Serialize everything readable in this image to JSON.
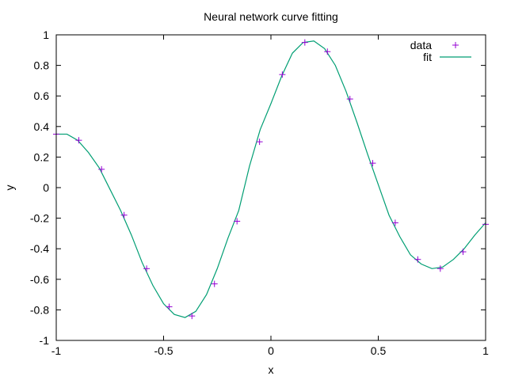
{
  "chart_data": {
    "type": "line",
    "title": "Neural network curve fitting",
    "xlabel": "x",
    "ylabel": "y",
    "xlim": [
      -1,
      1
    ],
    "ylim": [
      -1,
      1
    ],
    "xticks": [
      -1,
      -0.5,
      0,
      0.5,
      1
    ],
    "xtick_labels": [
      "-1",
      "-0.5",
      "0",
      "0.5",
      "1"
    ],
    "yticks": [
      -1,
      -0.8,
      -0.6,
      -0.4,
      -0.2,
      0,
      0.2,
      0.4,
      0.6,
      0.8,
      1
    ],
    "ytick_labels": [
      "-1",
      "-0.8",
      "-0.6",
      "-0.4",
      "-0.2",
      "0",
      "0.2",
      "0.4",
      "0.6",
      "0.8",
      "1"
    ],
    "grid": false,
    "legend_position": "top-right",
    "series": [
      {
        "name": "data",
        "kind": "points",
        "marker": "plus",
        "color": "#9400d3",
        "x": [
          -1.0,
          -0.895,
          -0.789,
          -0.684,
          -0.579,
          -0.474,
          -0.368,
          -0.263,
          -0.158,
          -0.053,
          0.053,
          0.158,
          0.263,
          0.368,
          0.474,
          0.579,
          0.684,
          0.789,
          0.895,
          1.0
        ],
        "y": [
          0.35,
          0.31,
          0.12,
          -0.18,
          -0.53,
          -0.78,
          -0.84,
          -0.63,
          -0.22,
          0.3,
          0.74,
          0.95,
          0.89,
          0.58,
          0.16,
          -0.23,
          -0.47,
          -0.53,
          -0.42,
          -0.24
        ]
      },
      {
        "name": "fit",
        "kind": "line",
        "color": "#009e73",
        "x": [
          -1.0,
          -0.95,
          -0.9,
          -0.85,
          -0.8,
          -0.75,
          -0.7,
          -0.65,
          -0.6,
          -0.55,
          -0.5,
          -0.45,
          -0.4,
          -0.35,
          -0.3,
          -0.25,
          -0.2,
          -0.15,
          -0.1,
          -0.05,
          0.0,
          0.05,
          0.1,
          0.15,
          0.2,
          0.25,
          0.3,
          0.35,
          0.4,
          0.45,
          0.5,
          0.55,
          0.6,
          0.65,
          0.7,
          0.75,
          0.8,
          0.85,
          0.9,
          0.95,
          1.0
        ],
        "y": [
          0.35,
          0.35,
          0.31,
          0.23,
          0.13,
          -0.01,
          -0.15,
          -0.31,
          -0.49,
          -0.64,
          -0.76,
          -0.83,
          -0.85,
          -0.81,
          -0.7,
          -0.53,
          -0.33,
          -0.15,
          0.14,
          0.38,
          0.55,
          0.73,
          0.88,
          0.95,
          0.96,
          0.91,
          0.8,
          0.63,
          0.43,
          0.22,
          0.02,
          -0.18,
          -0.32,
          -0.44,
          -0.5,
          -0.53,
          -0.52,
          -0.47,
          -0.4,
          -0.31,
          -0.23
        ]
      }
    ]
  }
}
